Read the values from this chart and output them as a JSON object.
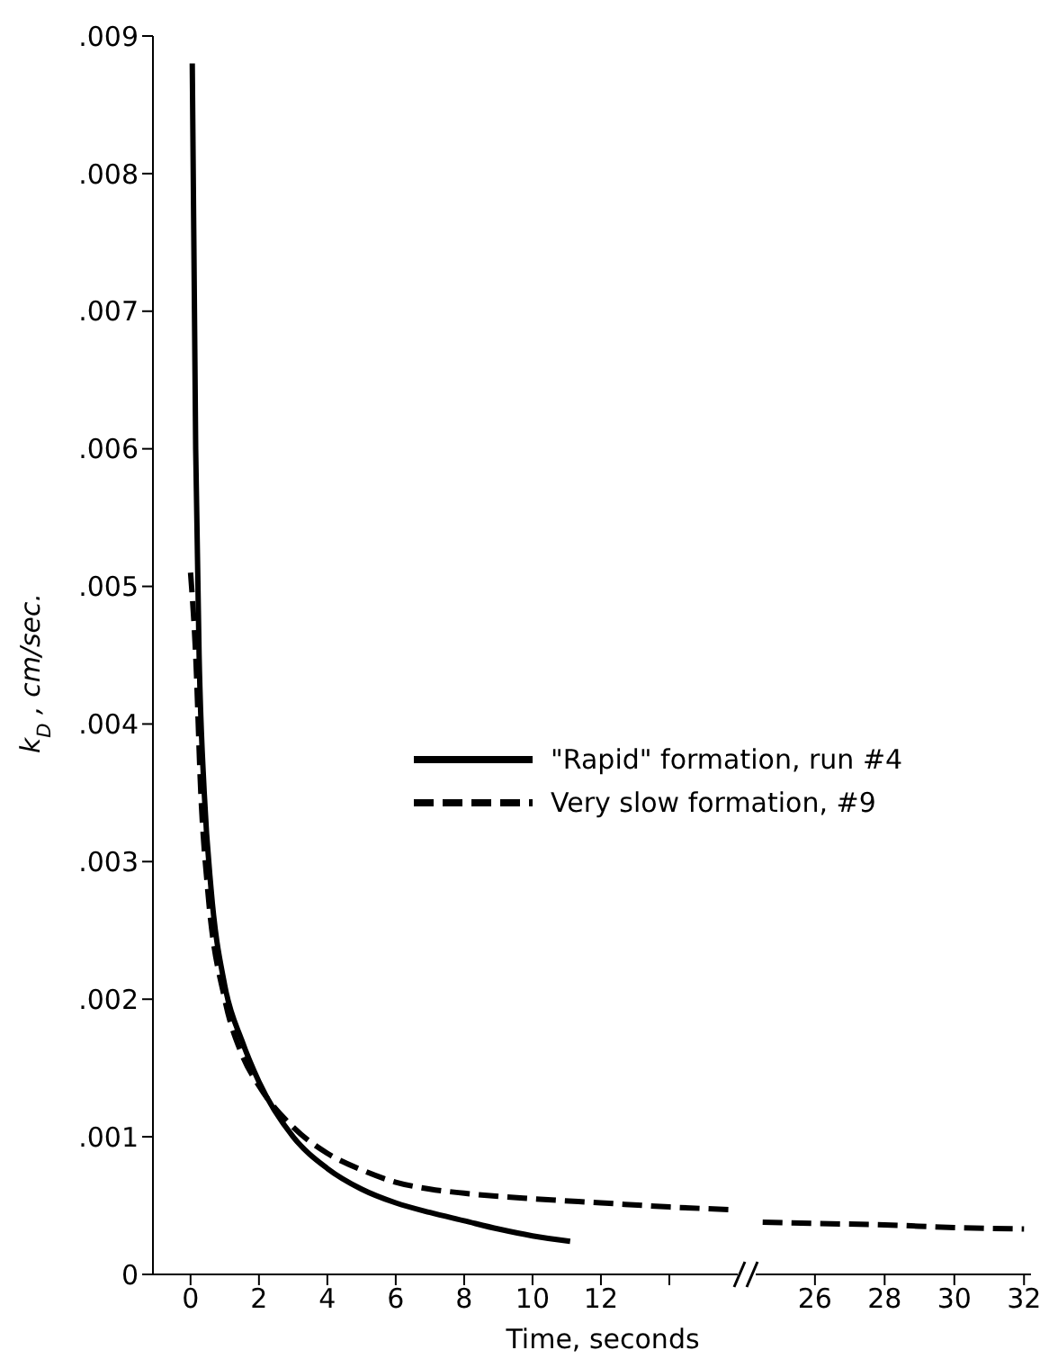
{
  "chart_data": [
    {
      "type": "line",
      "ylabel": "k$_{D}$, cm/sec.",
      "xlabel": "Time, seconds",
      "legend": "right",
      "marker": "none",
      "xlim": [
        -1.1,
        16
      ],
      "xticks": [
        0,
        2,
        4,
        6,
        8,
        10,
        12,
        {
          "value": 14,
          "label": null
        }
      ],
      "ylim": [
        0,
        0.009
      ],
      "yticks": [
        0,
        {
          "value": 0.001,
          "label": ".001"
        },
        {
          "value": 0.002,
          "label": ".002"
        },
        {
          "value": 0.003,
          "label": ".003"
        },
        {
          "value": 0.004,
          "label": ".004"
        },
        {
          "value": 0.005,
          "label": ".005"
        },
        {
          "value": 0.006,
          "label": ".006"
        },
        {
          "value": 0.007,
          "label": ".007"
        },
        {
          "value": 0.008,
          "label": ".008"
        },
        {
          "value": 0.009,
          "label": ".009"
        }
      ],
      "series": [
        {
          "name": "\"Rapid\" formation, run #4",
          "color": "#000000",
          "line_style": "solid",
          "x": [
            0.05,
            0.15,
            0.25,
            0.4,
            0.6,
            1,
            1.5,
            2,
            3,
            4,
            5,
            6,
            7,
            8,
            9,
            10,
            11.1
          ],
          "values": [
            0.0088,
            0.006,
            0.0045,
            0.0035,
            0.0028,
            0.0021,
            0.0017,
            0.0014,
            0.001,
            0.00077,
            0.00062,
            0.00052,
            0.00045,
            0.00039,
            0.00033,
            0.00028,
            0.00024
          ]
        },
        {
          "name": "Very slow formation, #9",
          "color": "#000000",
          "line_style": "dashed",
          "x": [
            0,
            0.15,
            0.3,
            0.5,
            1,
            1.5,
            2,
            3,
            4,
            5,
            6,
            7,
            8,
            10,
            12,
            14,
            15.9
          ],
          "values": [
            0.0051,
            0.0045,
            0.0035,
            0.0028,
            0.002,
            0.0016,
            0.00137,
            0.00107,
            0.00088,
            0.00076,
            0.00067,
            0.00062,
            0.00059,
            0.00055,
            0.00052,
            0.00049,
            0.00047
          ]
        }
      ]
    },
    {
      "type": "line",
      "tick_labels": "x",
      "marker": "none",
      "xlim": [
        24.3,
        32.2
      ],
      "xticks": [
        26,
        28,
        30,
        32
      ],
      "ylim": [
        0,
        0.009
      ],
      "series": [
        {
          "color": "#000000",
          "line_style": "dashed",
          "x": [
            24.5,
            26,
            28,
            30,
            32
          ],
          "values": [
            0.00038,
            0.00037,
            0.00036,
            0.00034,
            0.00033
          ]
        }
      ]
    }
  ]
}
